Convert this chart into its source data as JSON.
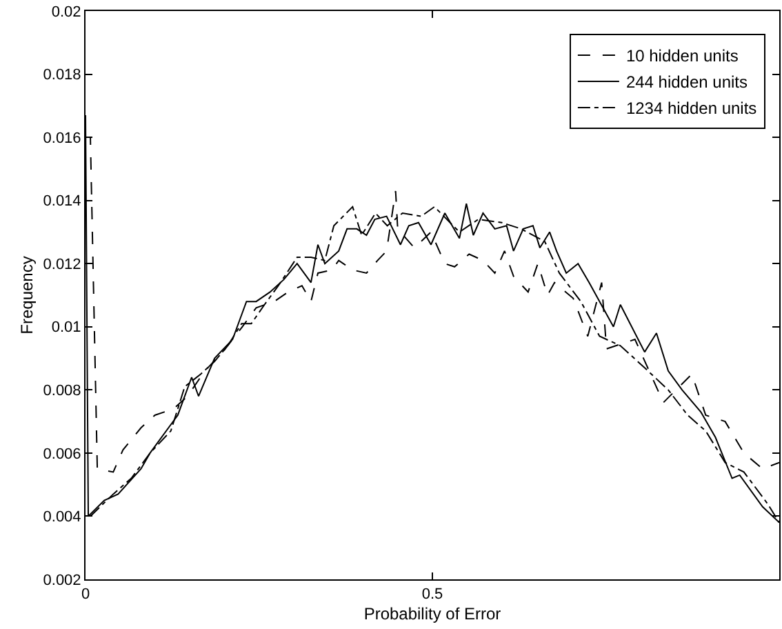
{
  "chart_data": {
    "type": "line",
    "xlabel": "Probability of Error",
    "ylabel": "Frequency",
    "xlim": [
      0,
      1
    ],
    "ylim": [
      0.002,
      0.02
    ],
    "xticks": [
      0,
      0.5
    ],
    "yticks": [
      0.002,
      0.004,
      0.006,
      0.008,
      0.01,
      0.012,
      0.014,
      0.016,
      0.018,
      0.02
    ],
    "grid": false,
    "legend": "top right",
    "marker": "none",
    "series": [
      {
        "name": "10 hidden units",
        "color": "#000000",
        "line_style": "dashed",
        "x": [
          0,
          0.007,
          0.017,
          0.04,
          0.054,
          0.08,
          0.1,
          0.127,
          0.147,
          0.172,
          0.198,
          0.226,
          0.246,
          0.272,
          0.292,
          0.312,
          0.325,
          0.335,
          0.355,
          0.365,
          0.385,
          0.405,
          0.421,
          0.434,
          0.447,
          0.45,
          0.474,
          0.498,
          0.518,
          0.532,
          0.553,
          0.573,
          0.59,
          0.604,
          0.617,
          0.638,
          0.652,
          0.666,
          0.676,
          0.703,
          0.724,
          0.744,
          0.751,
          0.792,
          0.833,
          0.874,
          0.894,
          0.922,
          0.949,
          0.976,
          1
        ],
        "values": [
          0.016,
          0.016,
          0.0055,
          0.0054,
          0.0061,
          0.0068,
          0.0072,
          0.0074,
          0.0078,
          0.0086,
          0.0092,
          0.01,
          0.0106,
          0.0108,
          0.0111,
          0.0113,
          0.0108,
          0.0117,
          0.0118,
          0.0121,
          0.0118,
          0.0117,
          0.0121,
          0.0124,
          0.0143,
          0.0131,
          0.0125,
          0.013,
          0.012,
          0.0119,
          0.0123,
          0.0121,
          0.0117,
          0.0124,
          0.0116,
          0.0111,
          0.012,
          0.011,
          0.0114,
          0.0109,
          0.0097,
          0.0114,
          0.0093,
          0.0096,
          0.0076,
          0.0085,
          0.0072,
          0.007,
          0.006,
          0.0055,
          0.0057
        ]
      },
      {
        "name": "244 hidden units",
        "color": "#000000",
        "line_style": "solid",
        "x": [
          0,
          0.004,
          0.027,
          0.047,
          0.08,
          0.093,
          0.133,
          0.153,
          0.163,
          0.186,
          0.212,
          0.232,
          0.246,
          0.266,
          0.286,
          0.305,
          0.325,
          0.335,
          0.345,
          0.365,
          0.377,
          0.391,
          0.405,
          0.417,
          0.434,
          0.454,
          0.466,
          0.48,
          0.498,
          0.518,
          0.539,
          0.549,
          0.559,
          0.573,
          0.59,
          0.607,
          0.617,
          0.631,
          0.645,
          0.655,
          0.669,
          0.679,
          0.693,
          0.71,
          0.726,
          0.761,
          0.771,
          0.806,
          0.823,
          0.84,
          0.86,
          0.887,
          0.908,
          0.932,
          0.943,
          0.976,
          1
        ],
        "values": [
          0.0167,
          0.004,
          0.0045,
          0.0047,
          0.0055,
          0.006,
          0.0072,
          0.0084,
          0.0078,
          0.009,
          0.0096,
          0.0108,
          0.0108,
          0.0111,
          0.0115,
          0.012,
          0.0114,
          0.0126,
          0.012,
          0.0124,
          0.0131,
          0.0131,
          0.0129,
          0.0134,
          0.0135,
          0.0126,
          0.0132,
          0.0133,
          0.0126,
          0.0136,
          0.0128,
          0.0139,
          0.0129,
          0.0136,
          0.0131,
          0.0132,
          0.0124,
          0.0131,
          0.0132,
          0.0125,
          0.013,
          0.0124,
          0.0117,
          0.012,
          0.0114,
          0.01,
          0.0107,
          0.0092,
          0.0098,
          0.0086,
          0.008,
          0.0073,
          0.0065,
          0.0052,
          0.0053,
          0.0043,
          0.0038
        ]
      },
      {
        "name": "1234 hidden units",
        "color": "#000000",
        "line_style": "dashdot",
        "x": [
          0.007,
          0.04,
          0.066,
          0.093,
          0.123,
          0.143,
          0.166,
          0.186,
          0.205,
          0.225,
          0.239,
          0.258,
          0.278,
          0.305,
          0.325,
          0.345,
          0.358,
          0.385,
          0.398,
          0.418,
          0.435,
          0.457,
          0.484,
          0.503,
          0.539,
          0.566,
          0.6,
          0.628,
          0.662,
          0.683,
          0.714,
          0.741,
          0.771,
          0.806,
          0.84,
          0.868,
          0.894,
          0.922,
          0.949,
          0.983,
          1
        ],
        "values": [
          0.004,
          0.0047,
          0.0052,
          0.006,
          0.0067,
          0.0081,
          0.0085,
          0.0089,
          0.0094,
          0.0101,
          0.0101,
          0.0107,
          0.0113,
          0.0122,
          0.0122,
          0.0121,
          0.0132,
          0.0138,
          0.0129,
          0.0136,
          0.0132,
          0.0136,
          0.0135,
          0.0138,
          0.013,
          0.0134,
          0.0133,
          0.0131,
          0.0127,
          0.0117,
          0.0108,
          0.0097,
          0.0094,
          0.0087,
          0.008,
          0.0072,
          0.0067,
          0.0057,
          0.0054,
          0.0044,
          0.0038
        ]
      }
    ]
  }
}
